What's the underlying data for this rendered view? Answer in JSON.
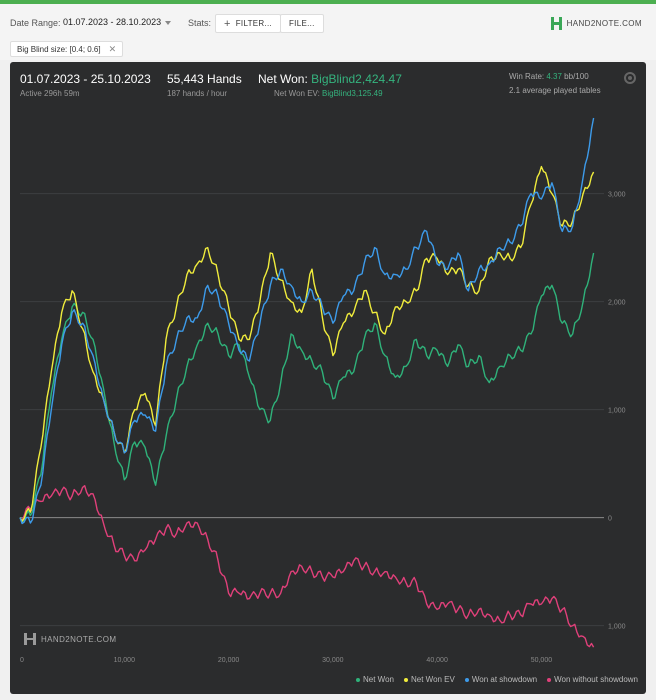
{
  "toolbar": {
    "date_range_label": "Date Range:",
    "date_range_value": "01.07.2023 - 28.10.2023",
    "stats_label": "Stats:",
    "filter_label": "FILTER...",
    "file_label": "FILE...",
    "logo_text": "HAND2NOTE.COM",
    "filter_chip": "Big Blind size: [0.4; 0.6]"
  },
  "summary": {
    "period": "01.07.2023 - 25.10.2023",
    "active": "Active 296h 59m",
    "hands": "55,443 Hands",
    "hands_per_hour": "187 hands / hour",
    "net_won_label": "Net Won:",
    "net_won_value": "BigBlind2,424.47",
    "net_won_ev_label": "Net Won  EV:",
    "net_won_ev_value": "BigBlind3,125.49",
    "win_rate_label": "Win Rate:",
    "win_rate_value": "4.37",
    "win_rate_unit": "bb/100",
    "tables": "2.1 average played tables"
  },
  "watermark": "HAND2NOTE.COM",
  "colors": {
    "net_won": "#2fb27a",
    "net_won_ev": "#f0ec3c",
    "won_at_showdown": "#3d9bea",
    "won_without_showdown": "#e0407a"
  },
  "chart_data": {
    "type": "line",
    "xlabel": "",
    "ylabel": "",
    "xlim": [
      0,
      56000
    ],
    "ylim": [
      -1300,
      3700
    ],
    "x_ticks": [
      0,
      10000,
      20000,
      30000,
      40000,
      50000
    ],
    "x_tick_labels": [
      "0",
      "10,000",
      "20,000",
      "30,000",
      "40,000",
      "50,000"
    ],
    "y_ticks": [
      -1000,
      0,
      1000,
      2000,
      3000
    ],
    "y_tick_labels": [
      "1,000",
      "0",
      "1,000",
      "2,000",
      "3,000"
    ],
    "grid": true,
    "legend_position": "bottom-right",
    "x": [
      0,
      1000,
      2000,
      3000,
      4000,
      5000,
      6000,
      7000,
      8000,
      9000,
      10000,
      11000,
      12000,
      13000,
      14000,
      15000,
      16000,
      17000,
      18000,
      19000,
      20000,
      21000,
      22000,
      23000,
      24000,
      25000,
      26000,
      27000,
      28000,
      29000,
      30000,
      31000,
      32000,
      33000,
      34000,
      35000,
      36000,
      37000,
      38000,
      39000,
      40000,
      41000,
      42000,
      43000,
      44000,
      45000,
      46000,
      47000,
      48000,
      49000,
      50000,
      51000,
      52000,
      53000,
      54000,
      55000
    ],
    "series": [
      {
        "name": "Net Won",
        "color": "#2fb27a",
        "values": [
          0,
          20,
          400,
          1150,
          1650,
          1950,
          1900,
          1650,
          1200,
          700,
          350,
          700,
          650,
          300,
          750,
          1100,
          1400,
          1600,
          1800,
          1700,
          1500,
          1600,
          1300,
          1000,
          900,
          1250,
          1700,
          1550,
          1450,
          1350,
          1100,
          1300,
          1350,
          1650,
          1800,
          1500,
          1300,
          1400,
          1650,
          1500,
          1550,
          1400,
          1600,
          1400,
          1500,
          1250,
          1400,
          1500,
          1550,
          1700,
          2050,
          2150,
          1800,
          1700,
          2000,
          2450
        ]
      },
      {
        "name": "Net Won  EV",
        "color": "#f0ec3c",
        "values": [
          0,
          50,
          650,
          1350,
          1900,
          2100,
          1750,
          1350,
          1100,
          800,
          600,
          1000,
          1150,
          850,
          1650,
          1950,
          2250,
          2350,
          2500,
          2250,
          1950,
          1650,
          1650,
          2000,
          2450,
          2200,
          2000,
          1900,
          2300,
          1850,
          1500,
          1800,
          1900,
          2100,
          1900,
          1700,
          1950,
          2000,
          2100,
          2400,
          2400,
          2250,
          2300,
          2150,
          2100,
          2400,
          2450,
          2400,
          2500,
          2900,
          3250,
          3000,
          2700,
          2750,
          3000,
          3200
        ]
      },
      {
        "name": "Won at showdown",
        "color": "#3d9bea",
        "values": [
          0,
          -50,
          300,
          1000,
          1600,
          1900,
          1800,
          1500,
          1100,
          800,
          600,
          900,
          950,
          800,
          1400,
          1650,
          1850,
          1850,
          2150,
          2050,
          1800,
          1550,
          1450,
          1800,
          2150,
          2300,
          2150,
          2000,
          2100,
          1950,
          1800,
          2050,
          2100,
          2350,
          2500,
          2250,
          2250,
          2300,
          2500,
          2650,
          2350,
          2300,
          2450,
          2100,
          2300,
          2350,
          2500,
          2550,
          2700,
          3000,
          2950,
          3100,
          2650,
          2700,
          3150,
          3700
        ]
      },
      {
        "name": "Won without showdown",
        "color": "#e0407a",
        "values": [
          0,
          80,
          150,
          200,
          250,
          200,
          280,
          220,
          -50,
          -250,
          -350,
          -400,
          -300,
          -200,
          -100,
          -150,
          -50,
          -50,
          -200,
          -400,
          -700,
          -700,
          -750,
          -700,
          -700,
          -700,
          -500,
          -450,
          -500,
          -550,
          -550,
          -500,
          -400,
          -450,
          -500,
          -500,
          -550,
          -600,
          -600,
          -800,
          -850,
          -800,
          -850,
          -900,
          -850,
          -900,
          -950,
          -900,
          -900,
          -800,
          -800,
          -750,
          -850,
          -1000,
          -1100,
          -1200
        ]
      }
    ]
  }
}
